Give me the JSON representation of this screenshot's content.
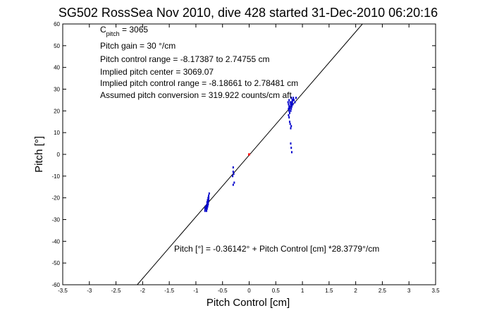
{
  "chart_data": {
    "type": "scatter",
    "title": "SG502 RossSea Nov 2010, dive 428 started 31-Dec-2010 06:20:16",
    "xlabel": "Pitch Control [cm]",
    "ylabel": "Pitch [°]",
    "xlim": [
      -3.5,
      3.5
    ],
    "ylim": [
      -60,
      60
    ],
    "xticks": [
      -3.5,
      -3,
      -2.5,
      -2,
      -1.5,
      -1,
      -0.5,
      0,
      0.5,
      1,
      1.5,
      2,
      2.5,
      3,
      3.5
    ],
    "xtick_labels": [
      "-3.5",
      "-3",
      "-2.5",
      "-2",
      "-1.5",
      "-1",
      "-0.5",
      "0",
      "0.5",
      "1",
      "1.5",
      "2",
      "2.5",
      "3",
      "3.5"
    ],
    "yticks": [
      -60,
      -50,
      -40,
      -30,
      -20,
      -10,
      0,
      10,
      20,
      30,
      40,
      50,
      60
    ],
    "ytick_labels": [
      "-60",
      "-50",
      "-40",
      "-30",
      "-20",
      "-10",
      "0",
      "10",
      "20",
      "30",
      "40",
      "50",
      "60"
    ],
    "grid": false,
    "colors": {
      "points": "#0000cc",
      "center": "#ff0000",
      "fit": "#000000"
    },
    "annotations": {
      "c_pitch_main": "C",
      "c_pitch_sub": "pitch",
      "c_pitch_value": " = 3065",
      "gain": "Pitch gain = 30 °/cm",
      "control_range": "Pitch control range = -8.17387 to 2.74755 cm",
      "implied_center": "Implied pitch center = 3069.07",
      "implied_range": "Implied pitch control range = -8.18661 to 2.78481 cm",
      "conversion": "Assumed pitch conversion = 319.922 counts/cm aft",
      "fit_equation": "Pitch [°] = -0.36142° + Pitch Control [cm] *28.3779°/cm"
    },
    "fit": {
      "intercept": -0.36142,
      "slope": 28.3779
    },
    "center_point": {
      "x": 0,
      "y": 0
    },
    "clusters": [
      {
        "x": [
          -0.83,
          -0.82,
          -0.81,
          -0.8,
          -0.79,
          -0.78,
          -0.77,
          -0.8,
          -0.79,
          -0.82,
          -0.78,
          -0.76,
          -0.81,
          -0.8,
          -0.77,
          -0.79,
          -0.83,
          -0.78,
          -0.76,
          -0.8
        ],
        "y": [
          -26,
          -25,
          -24,
          -25,
          -23,
          -24,
          -22,
          -26,
          -25,
          -24,
          -23,
          -21,
          -25,
          -24,
          -22,
          -23,
          -25,
          -22,
          -20,
          -24
        ]
      },
      {
        "x": [
          -0.78,
          -0.77,
          -0.76,
          -0.79,
          -0.75,
          -0.77
        ],
        "y": [
          -21,
          -20,
          -19,
          -22,
          -18,
          -23
        ]
      },
      {
        "x": [
          -0.3,
          -0.3,
          -0.29,
          -0.31,
          -0.28,
          -0.3
        ],
        "y": [
          -6,
          -8,
          -9,
          -10,
          -13,
          -14
        ]
      },
      {
        "x": [
          0.73,
          0.74,
          0.75,
          0.76,
          0.77,
          0.78,
          0.79,
          0.8,
          0.81,
          0.82,
          0.74,
          0.75,
          0.77,
          0.79,
          0.8,
          0.76,
          0.78,
          0.81,
          0.83,
          0.84,
          0.75,
          0.77,
          0.79,
          0.82,
          0.86,
          0.88,
          0.74,
          0.76,
          0.78,
          0.8
        ],
        "y": [
          24,
          23,
          25,
          22,
          24,
          23,
          26,
          24,
          25,
          23,
          21,
          20,
          22,
          21,
          23,
          19,
          20,
          24,
          26,
          25,
          22,
          24,
          26,
          25,
          24,
          26,
          18,
          21,
          23,
          22
        ]
      },
      {
        "x": [
          0.75,
          0.76,
          0.77,
          0.78,
          0.79,
          0.78,
          0.79,
          0.8
        ],
        "y": [
          17,
          15,
          14,
          12,
          13,
          5,
          3,
          1
        ]
      }
    ]
  }
}
